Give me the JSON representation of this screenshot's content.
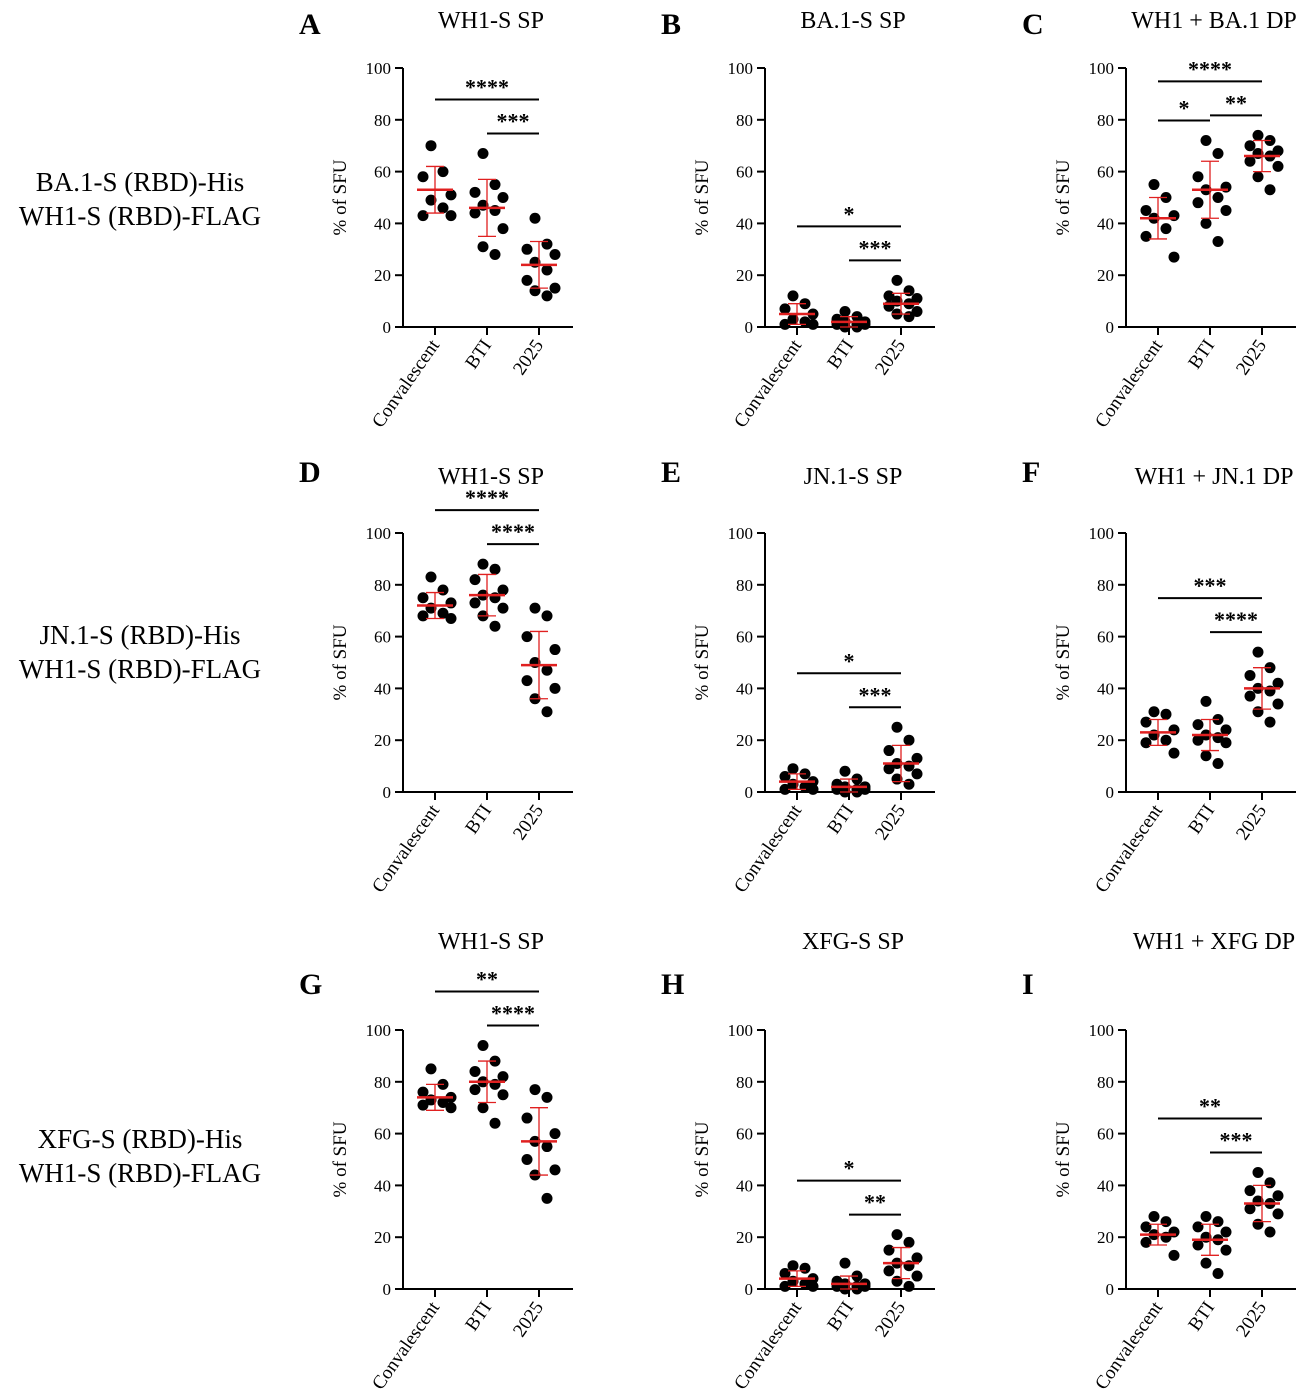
{
  "row_labels": [
    [
      "BA.1-S (RBD)-His",
      "WH1-S (RBD)-FLAG"
    ],
    [
      "JN.1-S (RBD)-His",
      "WH1-S (RBD)-FLAG"
    ],
    [
      "XFG-S (RBD)-His",
      "WH1-S (RBD)-FLAG"
    ]
  ],
  "colors": {
    "points": "#000000",
    "summary": "#e02020",
    "axis": "#000000"
  },
  "chart_data": [
    {
      "letter": "A",
      "type": "scatter",
      "title": "WH1-S SP",
      "ylabel": "% of SFU",
      "ylim": [
        0,
        100
      ],
      "yticks": [
        0,
        20,
        40,
        60,
        80,
        100
      ],
      "categories": [
        "Convalescent",
        "BTI",
        "2025"
      ],
      "groups": [
        {
          "points": [
            70,
            60,
            58,
            51,
            49,
            46,
            43,
            43
          ],
          "mean": 53,
          "sd": 9
        },
        {
          "points": [
            67,
            55,
            52,
            50,
            47,
            45,
            44,
            38,
            31,
            28
          ],
          "mean": 46,
          "sd": 11
        },
        {
          "points": [
            42,
            32,
            30,
            28,
            25,
            22,
            18,
            15,
            14,
            12
          ],
          "mean": 24,
          "sd": 9
        }
      ],
      "brackets": [
        {
          "from": 0,
          "to": 2,
          "label": "****"
        },
        {
          "from": 1,
          "to": 2,
          "label": "***"
        }
      ]
    },
    {
      "letter": "B",
      "type": "scatter",
      "title": "BA.1-S SP",
      "ylabel": "% of SFU",
      "ylim": [
        0,
        100
      ],
      "yticks": [
        0,
        20,
        40,
        60,
        80,
        100
      ],
      "categories": [
        "Convalescent",
        "BTI",
        "2025"
      ],
      "groups": [
        {
          "points": [
            12,
            9,
            7,
            5,
            3,
            2,
            1,
            1
          ],
          "mean": 5,
          "sd": 4
        },
        {
          "points": [
            6,
            4,
            3,
            2,
            2,
            1,
            1,
            1,
            0,
            0
          ],
          "mean": 2,
          "sd": 2
        },
        {
          "points": [
            18,
            14,
            12,
            11,
            10,
            9,
            8,
            6,
            5,
            4
          ],
          "mean": 9,
          "sd": 4
        }
      ],
      "brackets": [
        {
          "from": 0,
          "to": 2,
          "label": "*"
        },
        {
          "from": 1,
          "to": 2,
          "label": "***"
        }
      ]
    },
    {
      "letter": "C",
      "type": "scatter",
      "title": "WH1 + BA.1 DP",
      "ylabel": "% of SFU",
      "ylim": [
        0,
        100
      ],
      "yticks": [
        0,
        20,
        40,
        60,
        80,
        100
      ],
      "categories": [
        "Convalescent",
        "BTI",
        "2025"
      ],
      "groups": [
        {
          "points": [
            55,
            50,
            45,
            43,
            42,
            38,
            35,
            27
          ],
          "mean": 42,
          "sd": 8
        },
        {
          "points": [
            72,
            67,
            58,
            54,
            53,
            50,
            48,
            45,
            40,
            33
          ],
          "mean": 53,
          "sd": 11
        },
        {
          "points": [
            74,
            72,
            70,
            68,
            67,
            66,
            64,
            62,
            58,
            53
          ],
          "mean": 66,
          "sd": 6
        }
      ],
      "brackets": [
        {
          "from": 0,
          "to": 2,
          "label": "****"
        },
        {
          "from": 0,
          "to": 1,
          "label": "*"
        },
        {
          "from": 1,
          "to": 2,
          "label": "**"
        }
      ]
    },
    {
      "letter": "D",
      "type": "scatter",
      "title": "WH1-S SP",
      "ylabel": "% of SFU",
      "ylim": [
        0,
        100
      ],
      "yticks": [
        0,
        20,
        40,
        60,
        80,
        100
      ],
      "categories": [
        "Convalescent",
        "BTI",
        "2025"
      ],
      "groups": [
        {
          "points": [
            83,
            78,
            75,
            73,
            71,
            69,
            68,
            67
          ],
          "mean": 72,
          "sd": 5
        },
        {
          "points": [
            88,
            86,
            82,
            78,
            76,
            75,
            73,
            71,
            68,
            64
          ],
          "mean": 76,
          "sd": 8
        },
        {
          "points": [
            71,
            68,
            60,
            55,
            50,
            47,
            43,
            40,
            36,
            31
          ],
          "mean": 49,
          "sd": 13
        }
      ],
      "brackets": [
        {
          "from": 0,
          "to": 2,
          "label": "****"
        },
        {
          "from": 1,
          "to": 2,
          "label": "****"
        }
      ]
    },
    {
      "letter": "E",
      "type": "scatter",
      "title": "JN.1-S SP",
      "ylabel": "% of SFU",
      "ylim": [
        0,
        100
      ],
      "yticks": [
        0,
        20,
        40,
        60,
        80,
        100
      ],
      "categories": [
        "Convalescent",
        "BTI",
        "2025"
      ],
      "groups": [
        {
          "points": [
            9,
            7,
            6,
            4,
            3,
            2,
            1,
            1
          ],
          "mean": 4,
          "sd": 3
        },
        {
          "points": [
            8,
            5,
            3,
            2,
            2,
            1,
            1,
            1,
            0,
            0
          ],
          "mean": 2,
          "sd": 3
        },
        {
          "points": [
            25,
            20,
            16,
            13,
            11,
            10,
            9,
            7,
            5,
            3
          ],
          "mean": 11,
          "sd": 7
        }
      ],
      "brackets": [
        {
          "from": 0,
          "to": 2,
          "label": "*"
        },
        {
          "from": 1,
          "to": 2,
          "label": "***"
        }
      ]
    },
    {
      "letter": "F",
      "type": "scatter",
      "title": "WH1 + JN.1 DP",
      "ylabel": "% of SFU",
      "ylim": [
        0,
        100
      ],
      "yticks": [
        0,
        20,
        40,
        60,
        80,
        100
      ],
      "categories": [
        "Convalescent",
        "BTI",
        "2025"
      ],
      "groups": [
        {
          "points": [
            31,
            30,
            27,
            24,
            22,
            20,
            19,
            15
          ],
          "mean": 23,
          "sd": 5
        },
        {
          "points": [
            35,
            28,
            26,
            24,
            22,
            21,
            20,
            19,
            14,
            11
          ],
          "mean": 22,
          "sd": 6
        },
        {
          "points": [
            54,
            48,
            45,
            42,
            40,
            39,
            37,
            34,
            31,
            27
          ],
          "mean": 40,
          "sd": 8
        }
      ],
      "brackets": [
        {
          "from": 0,
          "to": 2,
          "label": "***"
        },
        {
          "from": 1,
          "to": 2,
          "label": "****"
        }
      ]
    },
    {
      "letter": "G",
      "type": "scatter",
      "title": "WH1-S SP",
      "ylabel": "% of SFU",
      "ylim": [
        0,
        100
      ],
      "yticks": [
        0,
        20,
        40,
        60,
        80,
        100
      ],
      "categories": [
        "Convalescent",
        "BTI",
        "2025"
      ],
      "groups": [
        {
          "points": [
            85,
            79,
            76,
            74,
            73,
            72,
            71,
            70
          ],
          "mean": 74,
          "sd": 5
        },
        {
          "points": [
            94,
            88,
            84,
            82,
            80,
            79,
            77,
            75,
            70,
            64
          ],
          "mean": 80,
          "sd": 8
        },
        {
          "points": [
            77,
            74,
            66,
            60,
            57,
            55,
            50,
            46,
            44,
            35
          ],
          "mean": 57,
          "sd": 13
        }
      ],
      "brackets": [
        {
          "from": 0,
          "to": 2,
          "label": "**"
        },
        {
          "from": 1,
          "to": 2,
          "label": "****"
        }
      ]
    },
    {
      "letter": "H",
      "type": "scatter",
      "title": "XFG-S SP",
      "ylabel": "% of SFU",
      "ylim": [
        0,
        100
      ],
      "yticks": [
        0,
        20,
        40,
        60,
        80,
        100
      ],
      "categories": [
        "Convalescent",
        "BTI",
        "2025"
      ],
      "groups": [
        {
          "points": [
            9,
            8,
            6,
            4,
            3,
            2,
            1,
            1
          ],
          "mean": 4,
          "sd": 3
        },
        {
          "points": [
            10,
            5,
            3,
            2,
            2,
            1,
            1,
            1,
            0,
            0
          ],
          "mean": 2,
          "sd": 3
        },
        {
          "points": [
            21,
            18,
            15,
            12,
            10,
            9,
            7,
            5,
            3,
            1
          ],
          "mean": 10,
          "sd": 6
        }
      ],
      "brackets": [
        {
          "from": 0,
          "to": 2,
          "label": "*"
        },
        {
          "from": 1,
          "to": 2,
          "label": "**"
        }
      ]
    },
    {
      "letter": "I",
      "type": "scatter",
      "title": "WH1 + XFG DP",
      "ylabel": "% of SFU",
      "ylim": [
        0,
        100
      ],
      "yticks": [
        0,
        20,
        40,
        60,
        80,
        100
      ],
      "categories": [
        "Convalescent",
        "BTI",
        "2025"
      ],
      "groups": [
        {
          "points": [
            28,
            26,
            24,
            22,
            21,
            20,
            18,
            13
          ],
          "mean": 21,
          "sd": 4
        },
        {
          "points": [
            28,
            26,
            24,
            22,
            20,
            19,
            17,
            15,
            10,
            6
          ],
          "mean": 19,
          "sd": 6
        },
        {
          "points": [
            45,
            41,
            38,
            36,
            34,
            33,
            31,
            29,
            25,
            22
          ],
          "mean": 33,
          "sd": 7
        }
      ],
      "brackets": [
        {
          "from": 0,
          "to": 2,
          "label": "**"
        },
        {
          "from": 1,
          "to": 2,
          "label": "***"
        }
      ]
    }
  ]
}
